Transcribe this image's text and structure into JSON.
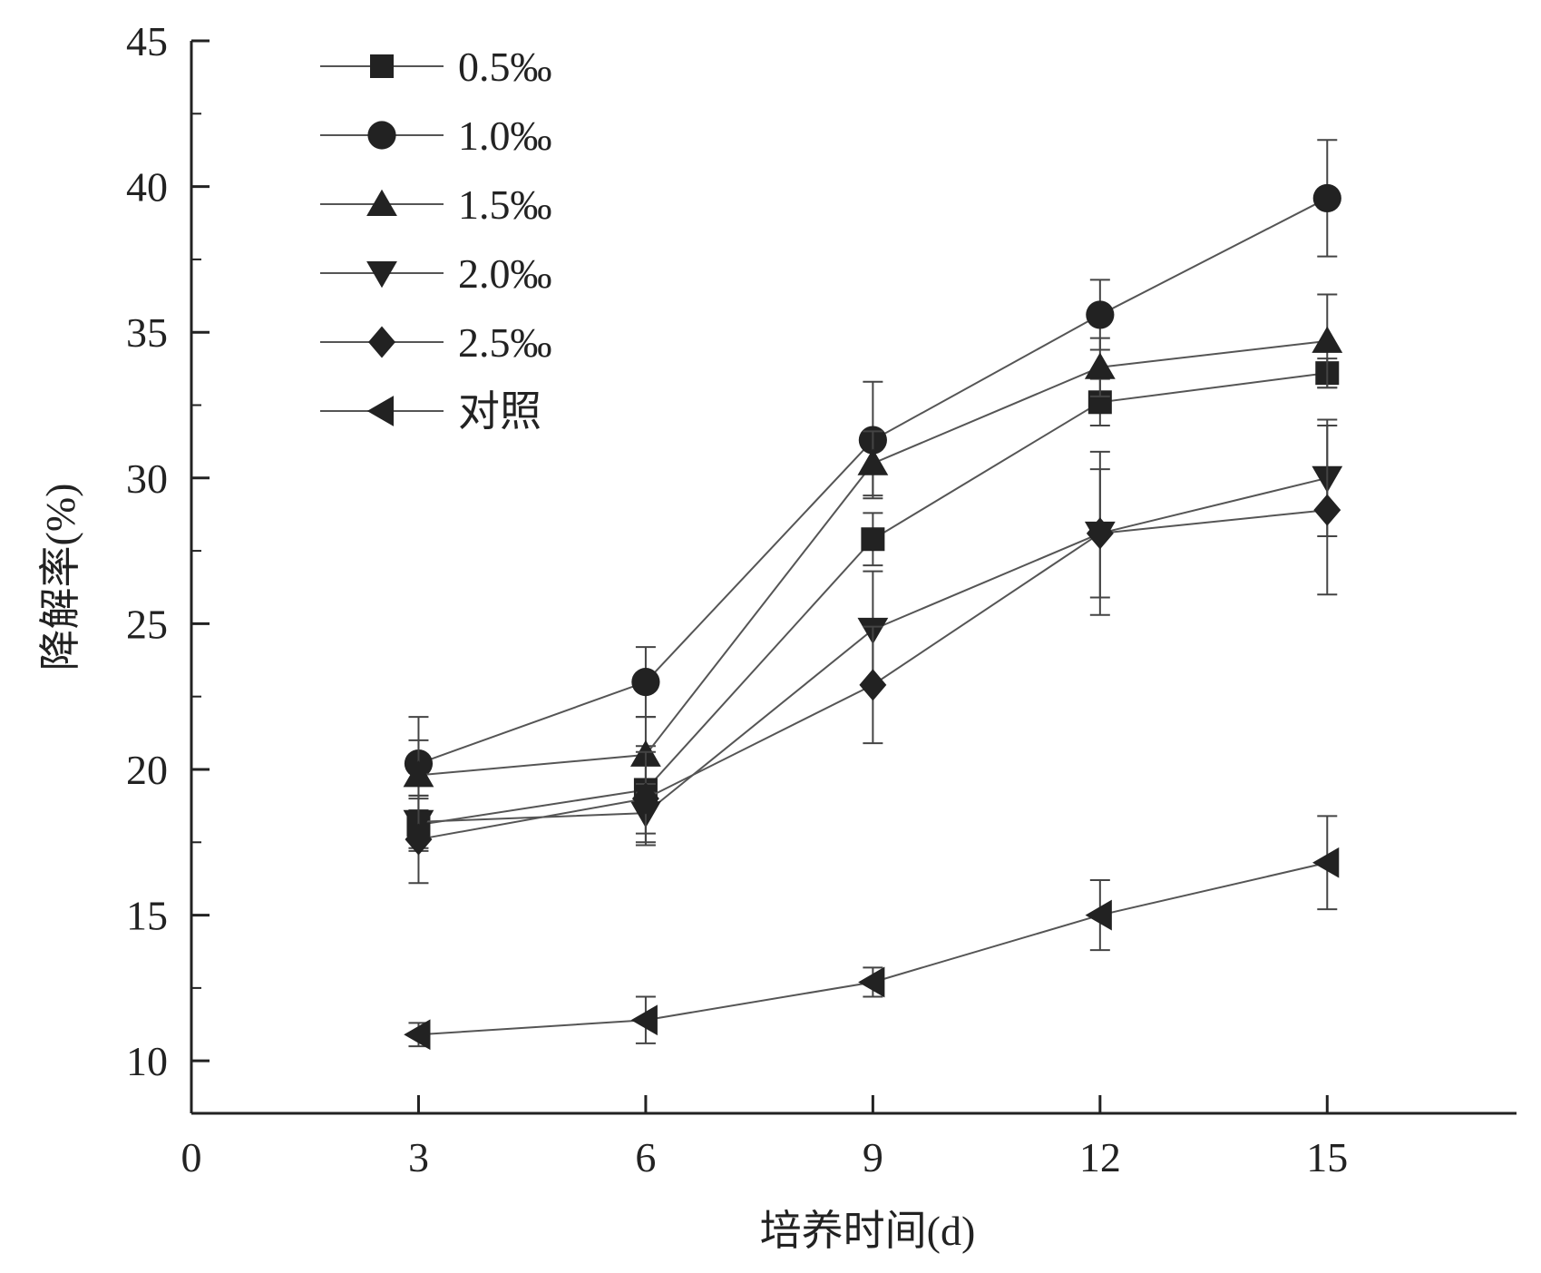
{
  "chart_data": {
    "type": "line",
    "title": "",
    "xlabel": "培养时间(d)",
    "ylabel": "降解率(%)",
    "xlim": [
      0,
      17.5
    ],
    "ylim": [
      8.2,
      45
    ],
    "x_ticks": [
      0,
      3,
      6,
      9,
      12,
      15
    ],
    "y_ticks": [
      10,
      15,
      20,
      25,
      30,
      35,
      40,
      45
    ],
    "grid": false,
    "legend_position": "top-left",
    "error_bars": true,
    "colors": {
      "line": "#555555",
      "marker": "#222222"
    },
    "series": [
      {
        "name": "0.5‰",
        "marker": "square",
        "x": [
          3,
          6,
          9,
          12,
          15
        ],
        "y": [
          18.1,
          19.3,
          27.9,
          32.6,
          33.6
        ],
        "err": [
          0.9,
          1.5,
          0.9,
          0.8,
          0.5
        ]
      },
      {
        "name": "1.0‰",
        "marker": "circle",
        "x": [
          3,
          6,
          9,
          12,
          15
        ],
        "y": [
          20.2,
          23.0,
          31.3,
          35.6,
          39.6
        ],
        "err": [
          1.6,
          1.2,
          2.0,
          1.2,
          2.0
        ]
      },
      {
        "name": "1.5‰",
        "marker": "triangle-up",
        "x": [
          3,
          6,
          9,
          12,
          15
        ],
        "y": [
          19.8,
          20.5,
          30.5,
          33.8,
          34.7
        ],
        "err": [
          1.2,
          1.3,
          1.1,
          1.0,
          1.6
        ]
      },
      {
        "name": "2.0‰",
        "marker": "triangle-down",
        "x": [
          3,
          6,
          9,
          12,
          15
        ],
        "y": [
          18.2,
          18.5,
          24.8,
          28.1,
          30.0
        ],
        "err": [
          0.9,
          1.0,
          2.0,
          2.8,
          2.0
        ]
      },
      {
        "name": "2.5‰",
        "marker": "diamond",
        "x": [
          3,
          6,
          9,
          12,
          15
        ],
        "y": [
          17.6,
          19.0,
          22.9,
          28.1,
          28.9
        ],
        "err": [
          1.5,
          1.6,
          2.0,
          2.2,
          2.9
        ]
      },
      {
        "name": "对照",
        "marker": "triangle-left",
        "x": [
          3,
          6,
          9,
          12,
          15
        ],
        "y": [
          10.9,
          11.4,
          12.7,
          15.0,
          16.8
        ],
        "err": [
          0.4,
          0.8,
          0.5,
          1.2,
          1.6
        ]
      }
    ]
  }
}
